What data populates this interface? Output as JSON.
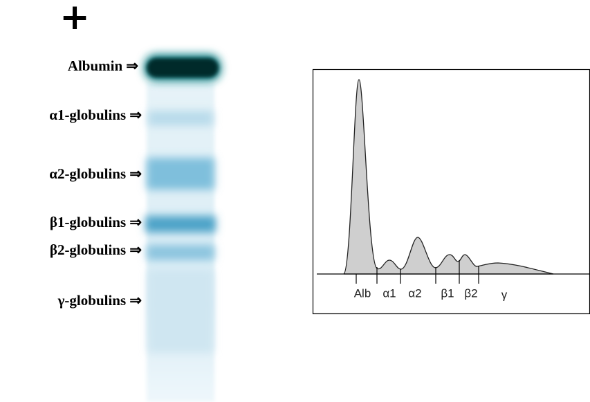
{
  "anode": "+",
  "gel_labels": [
    "Albumin ⇒",
    "α1-globulins ⇒",
    "α2-globulins ⇒",
    "β1-globulins ⇒",
    "β2-globulins ⇒",
    "γ-globulins ⇒"
  ],
  "densitogram_labels": [
    "Alb",
    "α1",
    "α2",
    "β1",
    "β2",
    "γ"
  ]
}
